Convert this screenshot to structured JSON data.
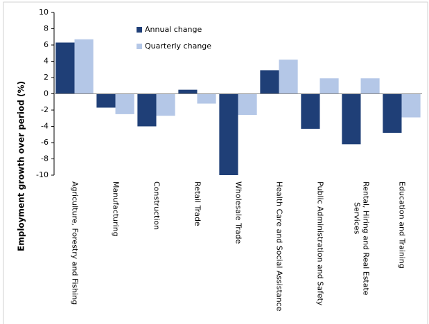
{
  "chart_data": {
    "type": "bar",
    "y_label": "Employment growth over period (%)",
    "categories": [
      "Agriculture, Forestry and Fishing",
      "Manufacturing",
      "Construction",
      "Retail Trade",
      "Wholesale Trade",
      "Health Care and Social Assistance",
      "Public Administration and Safety",
      "Rental, Hiring and Real Estate Services",
      "Education and Training"
    ],
    "series": [
      {
        "name": "Annual change",
        "color": "#1f3f77",
        "values": [
          6.3,
          -1.7,
          -4.0,
          0.5,
          -10.0,
          2.9,
          -4.3,
          -6.2,
          -4.8
        ]
      },
      {
        "name": "Quarterly change",
        "color": "#b4c7e7",
        "values": [
          6.7,
          -2.5,
          -2.7,
          -1.2,
          -2.6,
          4.2,
          1.9,
          1.9,
          -2.9
        ]
      }
    ],
    "ylim": [
      -10,
      10
    ],
    "yticks": [
      -10,
      -8,
      -6,
      -4,
      -2,
      0,
      2,
      4,
      6,
      8,
      10
    ]
  }
}
